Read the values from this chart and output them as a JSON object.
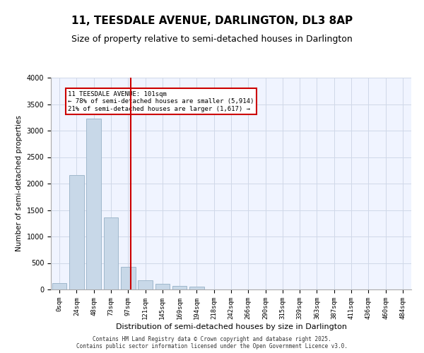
{
  "title_line1": "11, TEESDALE AVENUE, DARLINGTON, DL3 8AP",
  "title_line2": "Size of property relative to semi-detached houses in Darlington",
  "xlabel": "Distribution of semi-detached houses by size in Darlington",
  "ylabel": "Number of semi-detached properties",
  "bar_color": "#c8d8e8",
  "bar_edge_color": "#a0b8cc",
  "categories": [
    "0sqm",
    "24sqm",
    "48sqm",
    "73sqm",
    "97sqm",
    "121sqm",
    "145sqm",
    "169sqm",
    "194sqm",
    "218sqm",
    "242sqm",
    "266sqm",
    "290sqm",
    "315sqm",
    "339sqm",
    "363sqm",
    "387sqm",
    "411sqm",
    "436sqm",
    "460sqm",
    "484sqm"
  ],
  "values": [
    120,
    2160,
    3230,
    1360,
    430,
    180,
    110,
    65,
    55,
    0,
    0,
    0,
    0,
    0,
    0,
    0,
    0,
    0,
    0,
    0,
    0
  ],
  "ylim": [
    0,
    4000
  ],
  "yticks": [
    0,
    500,
    1000,
    1500,
    2000,
    2500,
    3000,
    3500,
    4000
  ],
  "property_size": 101,
  "property_label": "11 TEESDALE AVENUE: 101sqm",
  "pct_smaller": 78,
  "count_smaller": 5914,
  "pct_larger": 21,
  "count_larger": 1617,
  "vline_color": "#cc0000",
  "annotation_box_color": "#cc0000",
  "grid_color": "#d0d8e8",
  "background_color": "#f0f4ff",
  "footer_line1": "Contains HM Land Registry data © Crown copyright and database right 2025.",
  "footer_line2": "Contains public sector information licensed under the Open Government Licence v3.0.",
  "bin_width": 24
}
